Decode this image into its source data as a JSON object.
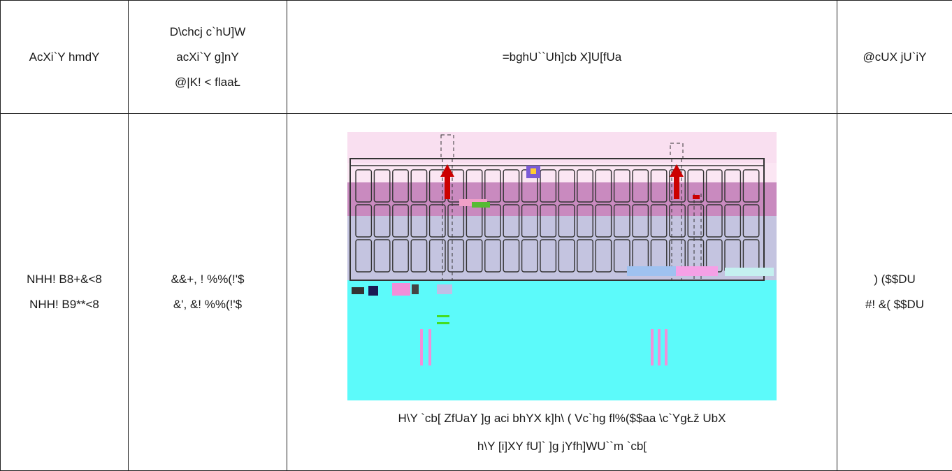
{
  "table": {
    "headers": [
      [
        "AcXi`Y hmdY"
      ],
      [
        "D\\chcj c`hU]W",
        "acXi`Y g]nY",
        "@|K! < flaaŁ"
      ],
      [
        "=bghU``Uh]cb X]U[fUa"
      ],
      [
        "@cUX jU`iY"
      ]
    ],
    "rows": [
      {
        "model": [
          "NHH! B8+&<8",
          "NHH! B9**<8"
        ],
        "size": [
          "&&+, ! %%(!'$",
          "&', &! %%(!'$"
        ],
        "caption": [
          "H\\Y `cb[ ZfUaY ]g aci bhYX k]h\\ ( Vc`hg fl%($$aa \\c`YgŁž UbX",
          "h\\Y [i]XY fU]` ]g jYfh]WU``m `cb["
        ],
        "load": [
          ") ($$DU",
          "#! &( $$DU"
        ]
      }
    ]
  },
  "colors": {
    "frame_line": "#333333",
    "pink_band": "#f9dff0",
    "purple_band": "#c98abf",
    "lavender_band": "#c4c4e0",
    "cyan_panel": "#5cfafa",
    "red_arrow": "#cc0000",
    "magenta_bar": "#f28fd9",
    "green_mark": "#44dd22"
  }
}
